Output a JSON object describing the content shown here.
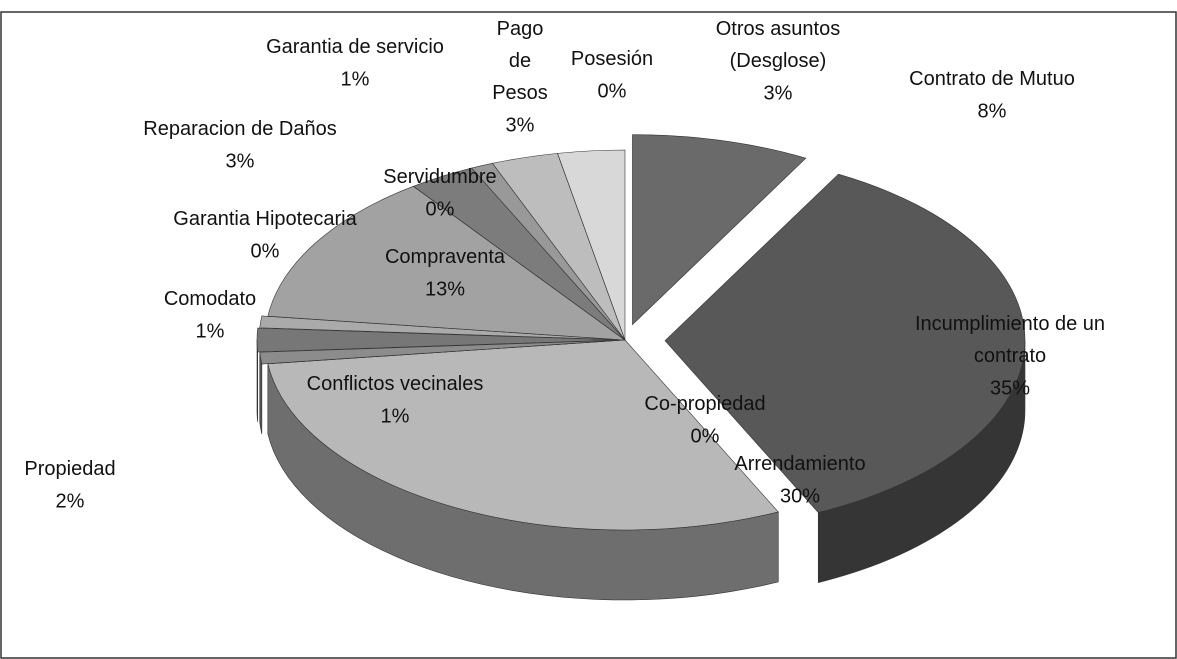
{
  "chart_data": {
    "type": "pie",
    "categories": [
      "Contrato de Mutuo",
      "Incumplimiento de un contrato",
      "Arrendamiento",
      "Co-propiedad",
      "Conflictos vecinales",
      "Propiedad",
      "Comodato",
      "Compraventa",
      "Garantia Hipotecaria",
      "Servidumbre",
      "Reparacion de Daños",
      "Garantia de servicio",
      "Pago de Pesos",
      "Posesión",
      "Otros asuntos (Desglose)"
    ],
    "values": [
      8,
      35,
      30,
      0,
      1,
      2,
      1,
      13,
      0,
      0,
      3,
      1,
      3,
      0,
      3
    ],
    "value_labels": [
      "8%",
      "35%",
      "30%",
      "0%",
      "1%",
      "2%",
      "1%",
      "13%",
      "0%",
      "0%",
      "3%",
      "1%",
      "3%",
      "0%",
      "3%"
    ],
    "colors": [
      "#6a6a6a",
      "#585858",
      "#b8b8b8",
      "#9a9a9a",
      "#8c8c8c",
      "#777777",
      "#aaaaaa",
      "#a2a2a2",
      "#888888",
      "#666666",
      "#7c7c7c",
      "#999999",
      "#bdbdbd",
      "#8a8a8a",
      "#d8d8d8"
    ]
  }
}
